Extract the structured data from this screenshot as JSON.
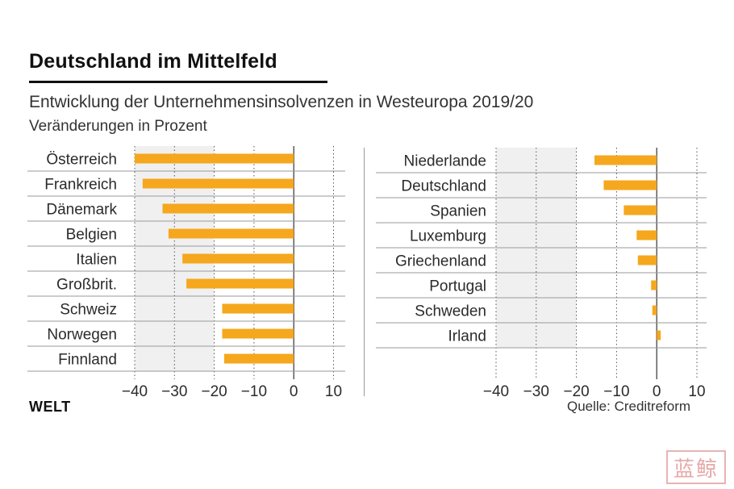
{
  "header": {
    "title": "Deutschland im Mittelfeld",
    "subtitle": "Entwicklung der Unternehmensinsolvenzen in Westeuropa 2019/20",
    "unit": "Veränderungen in Prozent"
  },
  "footer": {
    "brand": "WELT",
    "source": "Quelle: Creditreform",
    "stamp": "蓝鲸"
  },
  "colors": {
    "bar": "#f5a71e",
    "shade": "#f0f0f0",
    "row_line": "#9a9a9a",
    "grid": "#555555"
  },
  "chart_data": [
    {
      "type": "bar",
      "orientation": "horizontal",
      "title": "Deutschland im Mittelfeld",
      "subtitle": "Entwicklung der Unternehmensinsolvenzen in Westeuropa 2019/20",
      "ylabel": "Veränderungen in Prozent",
      "xlim": [
        -40,
        10
      ],
      "xticks": [
        -40,
        -30,
        -20,
        -10,
        0,
        10
      ],
      "xtick_labels": [
        "−40",
        "−30",
        "−20",
        "−10",
        "0",
        "10"
      ],
      "shaded_range": [
        -40,
        -20
      ],
      "categories": [
        "Österreich",
        "Frankreich",
        "Dänemark",
        "Belgien",
        "Italien",
        "Großbrit.",
        "Schweiz",
        "Norwegen",
        "Finnland"
      ],
      "values": [
        -40,
        -38,
        -33,
        -31.5,
        -28,
        -27,
        -18,
        -18,
        -17.5
      ]
    },
    {
      "type": "bar",
      "orientation": "horizontal",
      "xlim": [
        -40,
        10
      ],
      "xticks": [
        -40,
        -30,
        -20,
        -10,
        0,
        10
      ],
      "xtick_labels": [
        "−40",
        "−30",
        "−20",
        "−10",
        "0",
        "10"
      ],
      "shaded_range": [
        -40,
        -20
      ],
      "categories": [
        "Niederlande",
        "Deutschland",
        "Spanien",
        "Luxemburg",
        "Griechenland",
        "Portugal",
        "Schweden",
        "Irland"
      ],
      "values": [
        -15.5,
        -13.2,
        -8.2,
        -5,
        -4.7,
        -1.4,
        -1.1,
        1
      ]
    }
  ]
}
